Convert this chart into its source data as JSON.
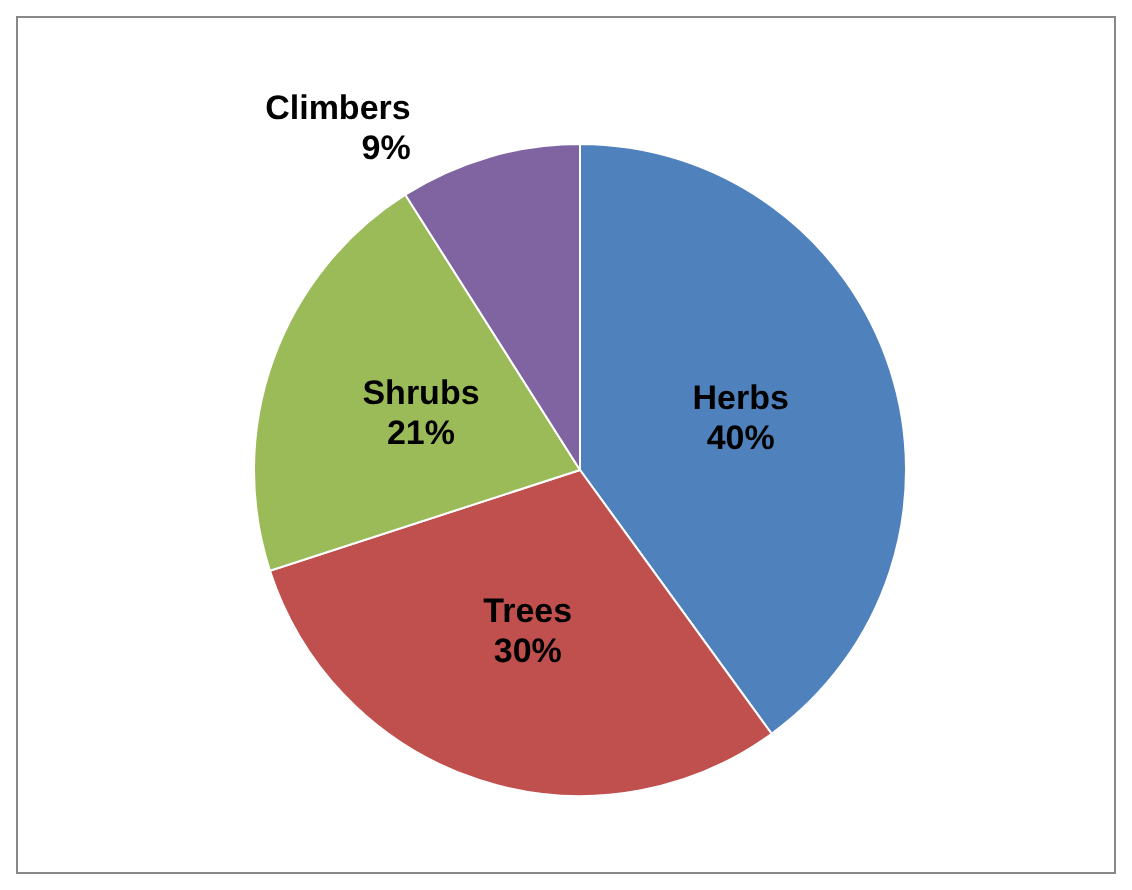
{
  "chart_data": {
    "type": "pie",
    "categories": [
      "Herbs",
      "Trees",
      "Shrubs",
      "Climbers"
    ],
    "values": [
      40,
      30,
      21,
      9
    ],
    "value_labels": [
      "40%",
      "30%",
      "21%",
      "9%"
    ],
    "colors": [
      "#4f81bd",
      "#c0504d",
      "#9bbb59",
      "#8064a2"
    ],
    "legend": false
  }
}
